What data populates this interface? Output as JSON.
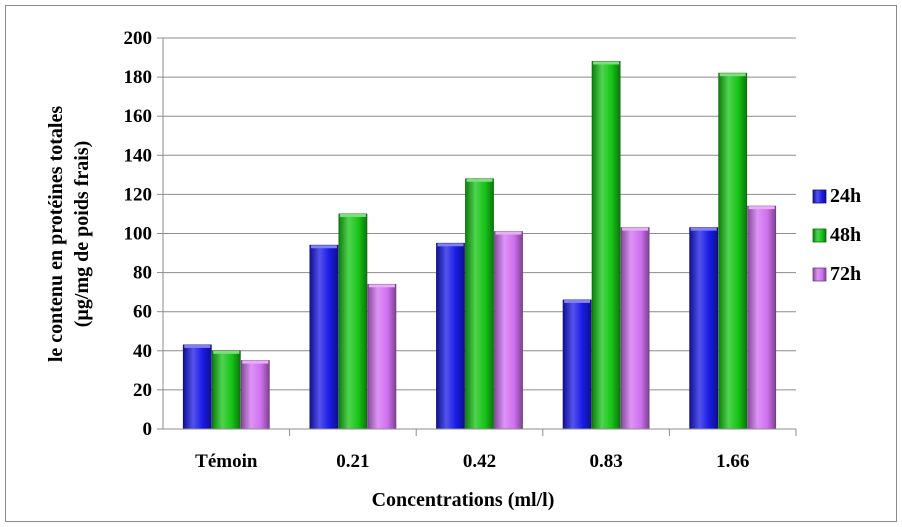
{
  "chart_data": {
    "type": "bar",
    "categories": [
      "Témoin",
      "0.21",
      "0.42",
      "0.83",
      "1.66"
    ],
    "series": [
      {
        "name": "24h",
        "values": [
          43,
          94,
          95,
          66,
          103
        ],
        "color": "#1a1ae6"
      },
      {
        "name": "48h",
        "values": [
          40,
          110,
          128,
          188,
          182
        ],
        "color": "#16c416"
      },
      {
        "name": "72h",
        "values": [
          35,
          74,
          101,
          103,
          114
        ],
        "color": "#d070f0"
      }
    ],
    "xlabel": "Concentrations (ml/l)",
    "ylabel_line1": "le contenu en protéines totales",
    "ylabel_line2": "(µg/mg de poids frais)",
    "ylim": [
      0,
      200
    ],
    "yticks": [
      0,
      20,
      40,
      60,
      80,
      100,
      120,
      140,
      160,
      180,
      200
    ],
    "grid": true,
    "legend_position": "right"
  }
}
